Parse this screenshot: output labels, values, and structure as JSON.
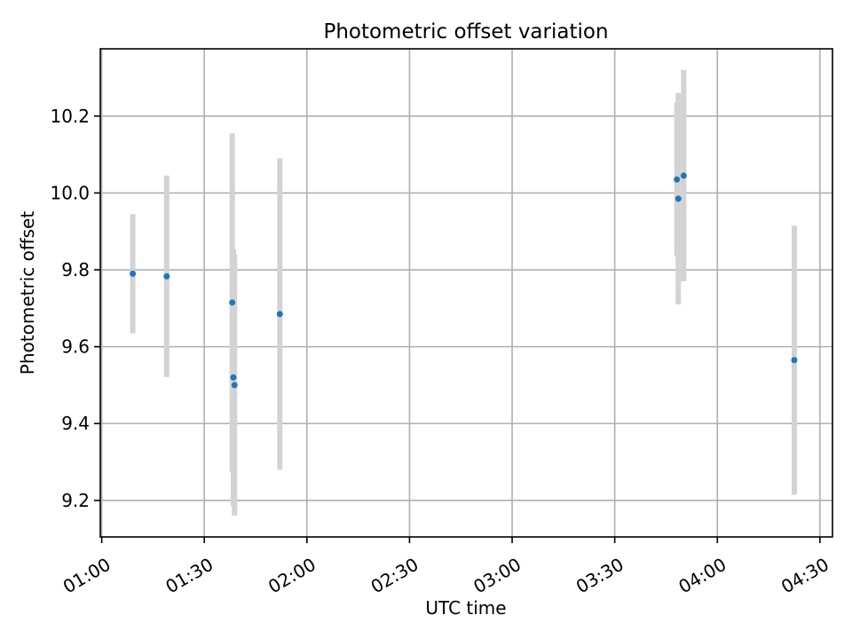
{
  "chart_data": {
    "type": "scatter",
    "title": "Photometric offset variation",
    "xlabel": "UTC time",
    "ylabel": "Photometric offset",
    "x_ticks": [
      "01:00",
      "01:30",
      "02:00",
      "02:30",
      "03:00",
      "03:30",
      "04:00",
      "04:30"
    ],
    "y_ticks": [
      "9.2",
      "9.4",
      "9.6",
      "9.8",
      "10.0",
      "10.2"
    ],
    "xlim": [
      "00:59:35",
      "04:33:40"
    ],
    "ylim": [
      9.105,
      10.375
    ],
    "grid": true,
    "series": [
      {
        "points": [
          {
            "x": "01:09:05",
            "y": 9.79,
            "err": 0.155
          },
          {
            "x": "01:19:00",
            "y": 9.783,
            "err": 0.262
          },
          {
            "x": "01:38:10",
            "y": 9.715,
            "err": 0.44
          },
          {
            "x": "01:38:30",
            "y": 9.52,
            "err": 0.335
          },
          {
            "x": "01:38:50",
            "y": 9.5,
            "err": 0.34
          },
          {
            "x": "01:52:05",
            "y": 9.685,
            "err": 0.405
          },
          {
            "x": "03:48:10",
            "y": 10.035,
            "err": 0.2
          },
          {
            "x": "03:48:35",
            "y": 9.985,
            "err": 0.275
          },
          {
            "x": "03:50:10",
            "y": 10.045,
            "err": 0.275
          },
          {
            "x": "04:22:30",
            "y": 9.565,
            "err": 0.35
          }
        ],
        "point_color": "#1f77b4",
        "errorbar_color": "#d3d3d3"
      }
    ]
  }
}
